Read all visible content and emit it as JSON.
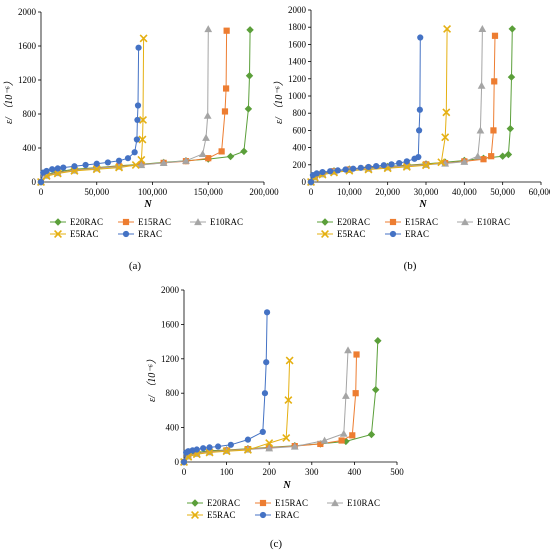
{
  "panels": [
    {
      "caption": "(a)",
      "xlabel": "N",
      "ylabel": "ε/ （10⁻⁶）",
      "x_ticks": [
        "0",
        "50,000",
        "100,000",
        "150,000",
        "200,000"
      ],
      "y_ticks": [
        "0",
        "400",
        "800",
        "1200",
        "1600",
        "2000"
      ]
    },
    {
      "caption": "(b)",
      "xlabel": "N",
      "ylabel": "ε/ （10⁻⁶）",
      "x_ticks": [
        "0",
        "10,000",
        "20,000",
        "30,000",
        "40,000",
        "50,000",
        "60,000"
      ],
      "y_ticks": [
        "0",
        "200",
        "400",
        "600",
        "800",
        "1000",
        "1200",
        "1400",
        "1600",
        "1800",
        "2000"
      ]
    },
    {
      "caption": "(c)",
      "xlabel": "N",
      "ylabel": "ε/ （10⁻⁶）",
      "x_ticks": [
        "0",
        "100",
        "200",
        "300",
        "400",
        "500"
      ],
      "y_ticks": [
        "0",
        "400",
        "800",
        "1200",
        "1600",
        "2000"
      ]
    }
  ],
  "legend": [
    "E20RAC",
    "E15RAC",
    "E10RAC",
    "E5RAC",
    "ERAC"
  ],
  "colors": {
    "E20RAC": "#5b9f3a",
    "E15RAC": "#ed7d31",
    "E10RAC": "#a5a5a5",
    "E5RAC": "#e5b012",
    "ERAC": "#4472c4"
  },
  "chart_data": [
    {
      "type": "scatter",
      "xlabel": "N",
      "ylabel": "ε/ （10⁻⁶）",
      "xlim": [
        0,
        200000
      ],
      "ylim": [
        0,
        2000
      ],
      "series": [
        {
          "name": "E20RAC",
          "marker": "diamond",
          "x": [
            0,
            5000,
            15000,
            30000,
            50000,
            70000,
            90000,
            110000,
            130000,
            150000,
            170000,
            182000,
            186000,
            187000,
            187500
          ],
          "y": [
            0,
            90,
            120,
            150,
            170,
            190,
            210,
            230,
            250,
            270,
            300,
            360,
            860,
            1250,
            1790
          ]
        },
        {
          "name": "E15RAC",
          "marker": "square",
          "x": [
            0,
            5000,
            15000,
            30000,
            50000,
            70000,
            90000,
            110000,
            130000,
            150000,
            162000,
            165000,
            166000,
            166500
          ],
          "y": [
            0,
            80,
            110,
            140,
            165,
            185,
            205,
            225,
            245,
            280,
            360,
            830,
            1100,
            1780
          ]
        },
        {
          "name": "E10RAC",
          "marker": "triangle",
          "x": [
            0,
            5000,
            15000,
            30000,
            50000,
            70000,
            90000,
            110000,
            130000,
            145000,
            148000,
            149500,
            150000
          ],
          "y": [
            0,
            75,
            105,
            135,
            160,
            180,
            200,
            225,
            250,
            330,
            520,
            780,
            1800
          ]
        },
        {
          "name": "E5RAC",
          "marker": "x",
          "x": [
            0,
            5000,
            15000,
            30000,
            50000,
            70000,
            85000,
            90000,
            91000,
            91500,
            92000
          ],
          "y": [
            0,
            70,
            100,
            130,
            150,
            170,
            200,
            260,
            500,
            730,
            1690
          ]
        },
        {
          "name": "ERAC",
          "marker": "circle",
          "x": [
            0,
            2000,
            5000,
            10000,
            15000,
            20000,
            30000,
            40000,
            50000,
            60000,
            70000,
            78000,
            84000,
            86000,
            86500,
            87000,
            87500
          ],
          "y": [
            0,
            110,
            130,
            150,
            160,
            170,
            185,
            200,
            215,
            230,
            250,
            280,
            350,
            500,
            730,
            900,
            1580
          ]
        }
      ]
    },
    {
      "type": "scatter",
      "xlabel": "N",
      "ylabel": "ε/ （10⁻⁶）",
      "xlim": [
        0,
        60000
      ],
      "ylim": [
        0,
        2000
      ],
      "series": [
        {
          "name": "E20RAC",
          "marker": "diamond",
          "x": [
            0,
            1000,
            3000,
            6000,
            10000,
            15000,
            20000,
            25000,
            30000,
            35000,
            40000,
            45000,
            50000,
            51500,
            52000,
            52300,
            52500
          ],
          "y": [
            0,
            60,
            100,
            130,
            150,
            165,
            180,
            195,
            210,
            230,
            250,
            275,
            300,
            320,
            620,
            1220,
            1780
          ]
        },
        {
          "name": "E15RAC",
          "marker": "square",
          "x": [
            0,
            1000,
            3000,
            6000,
            10000,
            15000,
            20000,
            25000,
            30000,
            35000,
            40000,
            45000,
            47000,
            47600,
            47800,
            48000
          ],
          "y": [
            0,
            60,
            95,
            125,
            145,
            160,
            175,
            190,
            205,
            220,
            240,
            265,
            300,
            600,
            1170,
            1700
          ]
        },
        {
          "name": "E10RAC",
          "marker": "triangle",
          "x": [
            0,
            1000,
            3000,
            6000,
            10000,
            15000,
            20000,
            25000,
            30000,
            35000,
            40000,
            43500,
            44200,
            44500,
            44700
          ],
          "y": [
            0,
            55,
            90,
            120,
            140,
            155,
            170,
            185,
            200,
            215,
            235,
            300,
            600,
            1120,
            1780
          ]
        },
        {
          "name": "E5RAC",
          "marker": "x",
          "x": [
            0,
            1000,
            3000,
            6000,
            10000,
            15000,
            20000,
            25000,
            30000,
            34000,
            35000,
            35300,
            35500
          ],
          "y": [
            0,
            50,
            85,
            110,
            130,
            145,
            160,
            175,
            195,
            230,
            520,
            810,
            1780
          ]
        },
        {
          "name": "ERAC",
          "marker": "circle",
          "x": [
            0,
            500,
            1500,
            3000,
            5000,
            7000,
            9000,
            11000,
            13000,
            15000,
            17000,
            19000,
            21000,
            23000,
            25000,
            27000,
            28000,
            28200,
            28400,
            28500
          ],
          "y": [
            0,
            80,
            100,
            115,
            125,
            135,
            145,
            155,
            165,
            175,
            185,
            195,
            205,
            220,
            240,
            270,
            290,
            600,
            840,
            1680
          ]
        }
      ]
    },
    {
      "type": "scatter",
      "xlabel": "N",
      "ylabel": "ε/ （10⁻⁶）",
      "xlim": [
        0,
        500
      ],
      "ylim": [
        0,
        2000
      ],
      "series": [
        {
          "name": "E20RAC",
          "marker": "diamond",
          "x": [
            0,
            10,
            30,
            60,
            100,
            150,
            200,
            260,
            320,
            380,
            440,
            450,
            455
          ],
          "y": [
            0,
            80,
            110,
            130,
            140,
            155,
            170,
            190,
            210,
            240,
            320,
            840,
            1410
          ]
        },
        {
          "name": "E15RAC",
          "marker": "square",
          "x": [
            0,
            10,
            30,
            60,
            100,
            150,
            200,
            260,
            320,
            370,
            395,
            403,
            405
          ],
          "y": [
            0,
            70,
            100,
            120,
            135,
            150,
            165,
            185,
            210,
            250,
            310,
            800,
            1250
          ]
        },
        {
          "name": "E10RAC",
          "marker": "triangle",
          "x": [
            0,
            10,
            30,
            60,
            100,
            150,
            200,
            260,
            330,
            375,
            380,
            385
          ],
          "y": [
            0,
            65,
            95,
            115,
            130,
            145,
            160,
            180,
            250,
            330,
            770,
            1300
          ]
        },
        {
          "name": "E5RAC",
          "marker": "x",
          "x": [
            0,
            10,
            30,
            60,
            100,
            150,
            200,
            240,
            245,
            248
          ],
          "y": [
            0,
            60,
            90,
            110,
            125,
            140,
            220,
            280,
            720,
            1180
          ]
        },
        {
          "name": "ERAC",
          "marker": "circle",
          "x": [
            0,
            5,
            10,
            20,
            30,
            45,
            60,
            80,
            110,
            150,
            185,
            190,
            193,
            195
          ],
          "y": [
            0,
            110,
            125,
            135,
            145,
            160,
            170,
            180,
            200,
            260,
            350,
            800,
            1160,
            1740
          ]
        }
      ]
    }
  ]
}
